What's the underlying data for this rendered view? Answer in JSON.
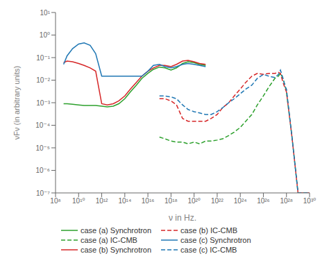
{
  "chart_data": {
    "type": "line",
    "xlabel": "ν in Hz.",
    "ylabel": "νFν (in arbitrary units)",
    "log": true,
    "grid": false,
    "legend": "lower left",
    "xlim": [
      100000000.0,
      1e+30
    ],
    "xticks": [
      {
        "value": 100000000.0,
        "label": "10⁸"
      },
      {
        "value": 10000000000.0,
        "label": "10¹⁰"
      },
      {
        "value": 1000000000000.0,
        "label": "10¹²"
      },
      {
        "value": 100000000000000.0,
        "label": "10¹⁴"
      },
      {
        "value": 1e+16,
        "label": "10¹⁶"
      },
      {
        "value": 1e+18,
        "label": "10¹⁸"
      },
      {
        "value": 1e+20,
        "label": "10²⁰"
      },
      {
        "value": 1e+22,
        "label": "10²²"
      },
      {
        "value": 1e+24,
        "label": "10²⁴"
      },
      {
        "value": 1e+26,
        "label": "10²⁶"
      },
      {
        "value": 1e+28,
        "label": "10²⁸"
      },
      {
        "value": 1e+30,
        "label": "10³⁰"
      }
    ],
    "ylim": [
      1e-07,
      10.0
    ],
    "yticks": [
      {
        "value": 1e-07,
        "label": "10⁻⁷"
      },
      {
        "value": 1e-06,
        "label": "10⁻⁶"
      },
      {
        "value": 1e-05,
        "label": "10⁻⁵"
      },
      {
        "value": 0.0001,
        "label": "10⁻⁴"
      },
      {
        "value": 0.001,
        "label": "10⁻³"
      },
      {
        "value": 0.01,
        "label": "10⁻²"
      },
      {
        "value": 0.1,
        "label": "10⁻¹"
      },
      {
        "value": 1.0,
        "label": "10⁰"
      },
      {
        "value": 10.0,
        "label": "10¹"
      }
    ],
    "series": [
      {
        "name": "case (a) Synchrotron",
        "color": "#2ca02c",
        "line_style": "solid",
        "x": [
          500000000.0,
          1000000000.0,
          3000000000.0,
          10000000000.0,
          30000000000.0,
          100000000000.0,
          300000000000.0,
          1000000000000.0,
          3000000000000.0,
          10000000000000.0,
          30000000000000.0,
          100000000000000.0,
          300000000000000.0,
          1000000000000000.0,
          3000000000000000.0,
          1e+16,
          3e+16,
          1e+17,
          3e+17,
          1e+18,
          3e+18,
          1e+19,
          3e+19,
          1e+20,
          3e+20,
          1e+21
        ],
        "values": [
          0.0009,
          0.0009,
          0.00085,
          0.0008,
          0.00075,
          0.00075,
          0.00075,
          0.0007,
          0.00065,
          0.0007,
          0.0009,
          0.0015,
          0.003,
          0.006,
          0.012,
          0.02,
          0.03,
          0.038,
          0.035,
          0.028,
          0.035,
          0.055,
          0.065,
          0.06,
          0.05,
          0.045
        ]
      },
      {
        "name": "case (b) Synchrotron",
        "color": "#d62728",
        "line_style": "solid",
        "x": [
          500000000.0,
          1000000000.0,
          3000000000.0,
          10000000000.0,
          30000000000.0,
          100000000000.0,
          300000000000.0,
          1000000000000.0,
          3000000000000.0,
          10000000000000.0,
          30000000000000.0,
          100000000000000.0,
          300000000000000.0,
          1000000000000000.0,
          3000000000000000.0,
          1e+16,
          3e+16,
          1e+17,
          3e+17,
          1e+18,
          3e+18,
          1e+19,
          3e+19,
          1e+20,
          3e+20,
          1e+21
        ],
        "values": [
          0.06,
          0.07,
          0.065,
          0.055,
          0.045,
          0.035,
          0.025,
          0.0009,
          0.0008,
          0.0009,
          0.0012,
          0.002,
          0.004,
          0.008,
          0.015,
          0.025,
          0.035,
          0.045,
          0.045,
          0.04,
          0.05,
          0.07,
          0.075,
          0.065,
          0.055,
          0.05
        ]
      },
      {
        "name": "case (c) Synchrotron",
        "color": "#1f77b4",
        "line_style": "solid",
        "x": [
          500000000.0,
          1000000000.0,
          3000000000.0,
          10000000000.0,
          30000000000.0,
          100000000000.0,
          300000000000.0,
          1000000000000.0,
          3000000000000.0,
          10000000000000.0,
          30000000000000.0,
          100000000000000.0,
          300000000000000.0,
          1000000000000000.0,
          3000000000000000.0,
          1e+16,
          3e+16,
          1e+17,
          3e+17,
          1e+18,
          3e+18,
          1e+19,
          3e+19,
          1e+20,
          3e+20,
          1e+21
        ],
        "values": [
          0.05,
          0.12,
          0.25,
          0.4,
          0.45,
          0.35,
          0.15,
          0.015,
          0.015,
          0.015,
          0.015,
          0.015,
          0.015,
          0.015,
          0.015,
          0.025,
          0.045,
          0.05,
          0.04,
          0.035,
          0.04,
          0.05,
          0.055,
          0.05,
          0.045,
          0.04
        ]
      },
      {
        "name": "case (a) IC-CMB",
        "color": "#2ca02c",
        "line_style": "dashed",
        "x": [
          1e+17,
          3e+17,
          1e+18,
          3e+18,
          1e+19,
          3e+19,
          1e+20,
          3e+20,
          1e+21,
          3e+21,
          1e+22,
          3e+22,
          1e+23,
          3e+23,
          1e+24,
          3e+24,
          1e+25,
          3e+25,
          1e+26,
          3e+26,
          1e+27,
          2e+27,
          3e+27,
          5e+27,
          8e+27,
          1e+28,
          3e+28,
          1e+29,
          3e+29,
          1e+30
        ],
        "values": [
          3e-05,
          2.5e-05,
          2e-05,
          1.8e-05,
          1.8e-05,
          1.5e-05,
          1.8e-05,
          1.5e-05,
          2e-05,
          2e-05,
          2.2e-05,
          2.5e-05,
          3.5e-05,
          5e-05,
          8e-05,
          0.00015,
          0.0003,
          0.0008,
          0.002,
          0.005,
          0.012,
          0.015,
          0.02,
          0.012,
          0.005,
          0.003,
          3e-05,
          1e-07,
          1e-07,
          1e-07
        ]
      },
      {
        "name": "case (b) IC-CMB",
        "color": "#d62728",
        "line_style": "dashed",
        "x": [
          1e+17,
          3e+17,
          1e+18,
          3e+18,
          1e+19,
          3e+19,
          1e+20,
          3e+20,
          1e+21,
          3e+21,
          1e+22,
          3e+22,
          1e+23,
          3e+23,
          1e+24,
          3e+24,
          1e+25,
          3e+25,
          1e+26,
          3e+26,
          1e+27,
          2e+27,
          3e+27,
          5e+27,
          8e+27,
          1e+28,
          3e+28,
          1e+29,
          3e+29,
          1e+30
        ],
        "values": [
          0.0015,
          0.0015,
          0.0012,
          0.0008,
          0.0002,
          0.00015,
          0.00015,
          0.00015,
          0.00015,
          0.0002,
          0.0003,
          0.0006,
          0.001,
          0.002,
          0.004,
          0.008,
          0.015,
          0.02,
          0.018,
          0.02,
          0.02,
          0.022,
          0.02,
          0.008,
          0.004,
          0.003,
          3e-05,
          1e-07,
          1e-07,
          1e-07
        ]
      },
      {
        "name": "case (c) IC-CMB",
        "color": "#1f77b4",
        "line_style": "dashed",
        "x": [
          1e+17,
          3e+17,
          1e+18,
          3e+18,
          1e+19,
          3e+19,
          1e+20,
          3e+20,
          1e+21,
          3e+21,
          1e+22,
          3e+22,
          1e+23,
          3e+23,
          1e+24,
          3e+24,
          1e+25,
          3e+25,
          1e+26,
          3e+26,
          1e+27,
          2e+27,
          3e+27,
          5e+27,
          8e+27,
          1e+28,
          3e+28,
          1e+29,
          3e+29,
          1e+30
        ],
        "values": [
          0.002,
          0.002,
          0.0018,
          0.0015,
          0.0008,
          0.0005,
          0.0004,
          0.00035,
          0.0003,
          0.0003,
          0.0004,
          0.0006,
          0.001,
          0.0015,
          0.0025,
          0.004,
          0.006,
          0.012,
          0.018,
          0.015,
          0.013,
          0.018,
          0.028,
          0.012,
          0.005,
          0.004,
          3e-05,
          1e-07,
          1e-07,
          1e-07
        ]
      }
    ]
  }
}
